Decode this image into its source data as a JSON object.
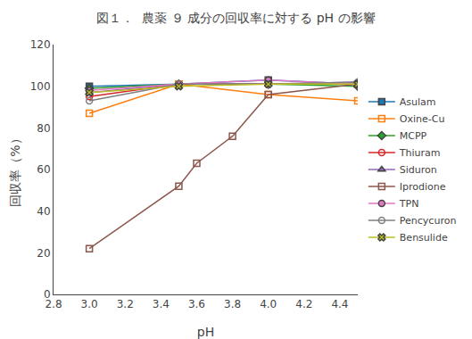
{
  "chart_data": {
    "type": "line",
    "title": "図１．  農薬 ９ 成分の回収率に対する pH の影響",
    "x_label": "pH",
    "y_label": "回収率（%）",
    "xlim": [
      2.8,
      4.5
    ],
    "ylim": [
      0,
      120
    ],
    "xticks": [
      2.8,
      {
        "value": 3.0,
        "label": "3.0"
      },
      3.2,
      3.4,
      3.6,
      3.8,
      {
        "value": 4.0,
        "label": "4.0"
      },
      4.2,
      4.4
    ],
    "yticks": [
      0,
      20,
      40,
      60,
      80,
      100,
      120
    ],
    "grid": false,
    "legend": "right",
    "series": [
      {
        "name": "Asulam",
        "x": [
          3.0,
          3.5,
          4.0,
          4.5
        ],
        "values": [
          100,
          101,
          103,
          101
        ],
        "marker": "square",
        "line_style": "solid"
      },
      {
        "name": "Oxine-Cu",
        "x": [
          3.0,
          3.5,
          4.0,
          4.5
        ],
        "values": [
          87,
          101,
          96,
          93
        ],
        "marker": "square-open",
        "line_style": "solid"
      },
      {
        "name": "MCPP",
        "x": [
          3.0,
          3.5,
          4.0,
          4.5
        ],
        "values": [
          99,
          101,
          101,
          100
        ],
        "marker": "diamond",
        "line_style": "solid"
      },
      {
        "name": "Thiuram",
        "x": [
          3.0,
          3.5,
          4.0,
          4.5
        ],
        "values": [
          95,
          101,
          101,
          101
        ],
        "marker": "circle-open",
        "line_style": "solid"
      },
      {
        "name": "Siduron",
        "x": [
          3.0,
          3.5,
          4.0,
          4.5
        ],
        "values": [
          97,
          101,
          101,
          102
        ],
        "marker": "triangle-up",
        "line_style": "solid"
      },
      {
        "name": "Iprodione",
        "x": [
          3.0,
          3.5,
          3.6,
          3.8,
          4.0,
          4.5
        ],
        "values": [
          22,
          52,
          63,
          76,
          96,
          101
        ],
        "marker": "square-open",
        "line_style": "solid"
      },
      {
        "name": "TPN",
        "x": [
          3.0,
          3.5,
          4.0,
          4.5
        ],
        "values": [
          98,
          101,
          103,
          101
        ],
        "marker": "circle",
        "line_style": "solid"
      },
      {
        "name": "Pencycuron",
        "x": [
          3.0,
          3.5,
          4.0,
          4.5
        ],
        "values": [
          93,
          101,
          101,
          102
        ],
        "marker": "circle-open",
        "line_style": "solid"
      },
      {
        "name": "Bensulide",
        "x": [
          3.0,
          3.5,
          4.0,
          4.5
        ],
        "values": [
          97,
          100,
          101,
          101
        ],
        "marker": "x",
        "line_style": "solid"
      }
    ]
  }
}
